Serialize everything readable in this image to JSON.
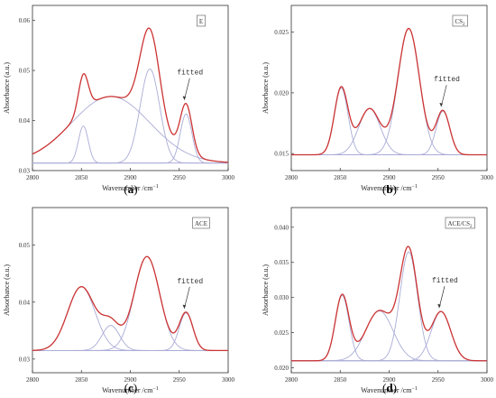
{
  "chart_data": [
    {
      "type": "line",
      "panel": "a",
      "caption": [
        "(",
        "a",
        ")"
      ],
      "legend": "E",
      "legend_sub": "",
      "annotation": "fitted",
      "xlabel": "Wavenumber",
      "xunit": "/cm",
      "xunit_sup": "−1",
      "ylabel": "Absorbance (a.u.)",
      "xlim": [
        2800,
        3000
      ],
      "ylim": [
        0.03,
        0.063
      ],
      "x_ticks": [
        2800,
        2850,
        2900,
        2950,
        3000
      ],
      "y_ticks": [
        "0.03",
        "0.04",
        "0.05",
        "0.06"
      ],
      "y_tick_values": [
        0.03,
        0.04,
        0.05,
        0.06
      ],
      "baseline": 0.0315,
      "peaks": [
        {
          "center": 2852,
          "height": 0.0074,
          "width": 5
        },
        {
          "center": 2880,
          "height": 0.0133,
          "width": 40
        },
        {
          "center": 2920,
          "height": 0.0188,
          "width": 10
        },
        {
          "center": 2957,
          "height": 0.0098,
          "width": 6
        }
      ],
      "annotation_peak": 2957
    },
    {
      "type": "line",
      "panel": "b",
      "caption": [
        "(",
        "b",
        ")"
      ],
      "legend": "CS",
      "legend_sub": "2",
      "annotation": "fitted",
      "xlabel": "Wavenumber",
      "xunit": "/cm",
      "xunit_sup": "−1",
      "ylabel": "Absorbance (a.u.)",
      "xlim": [
        2800,
        3000
      ],
      "ylim": [
        0.0136,
        0.0272
      ],
      "x_ticks": [
        2800,
        2850,
        2900,
        2950,
        3000
      ],
      "y_ticks": [
        "0.015",
        "0.020",
        "0.025"
      ],
      "y_tick_values": [
        0.015,
        0.02,
        0.025
      ],
      "baseline": 0.0149,
      "peaks": [
        {
          "center": 2851,
          "height": 0.0055,
          "width": 7
        },
        {
          "center": 2880,
          "height": 0.0038,
          "width": 11
        },
        {
          "center": 2920,
          "height": 0.0104,
          "width": 11
        },
        {
          "center": 2955,
          "height": 0.0036,
          "width": 7
        }
      ],
      "annotation_peak": 2955
    },
    {
      "type": "line",
      "panel": "c",
      "caption": [
        "(",
        "c",
        ")"
      ],
      "legend": "ACE",
      "legend_sub": "",
      "annotation": "fitted",
      "xlabel": "Wavenumber",
      "xunit": "/cm",
      "xunit_sup": "−1",
      "ylabel": "Absorbance (a.u.)",
      "xlim": [
        2800,
        3000
      ],
      "ylim": [
        0.0276,
        0.0566
      ],
      "x_ticks": [
        2800,
        2850,
        2900,
        2950,
        3000
      ],
      "y_ticks": [
        "0.03",
        "0.04",
        "0.05"
      ],
      "y_tick_values": [
        0.03,
        0.04,
        0.05
      ],
      "baseline": 0.0315,
      "peaks": [
        {
          "center": 2850,
          "height": 0.0112,
          "width": 14
        },
        {
          "center": 2880,
          "height": 0.0044,
          "width": 9
        },
        {
          "center": 2917,
          "height": 0.0165,
          "width": 13
        },
        {
          "center": 2957,
          "height": 0.0066,
          "width": 7
        }
      ],
      "annotation_peak": 2957
    },
    {
      "type": "line",
      "panel": "d",
      "caption": [
        "(",
        "d",
        ")"
      ],
      "legend": "ACE/CS",
      "legend_sub": "2",
      "annotation": "fitted",
      "xlabel": "Wavenumber",
      "xunit": "/cm",
      "xunit_sup": "−1",
      "ylabel": "Absorbance (a.u.)",
      "xlim": [
        2800,
        3000
      ],
      "ylim": [
        0.0193,
        0.0428
      ],
      "x_ticks": [
        2800,
        2850,
        2900,
        2950,
        3000
      ],
      "y_ticks": [
        "0.020",
        "0.025",
        "0.030",
        "0.035",
        "0.040"
      ],
      "y_tick_values": [
        0.02,
        0.025,
        0.03,
        0.035,
        0.04
      ],
      "baseline": 0.021,
      "peaks": [
        {
          "center": 2852,
          "height": 0.0093,
          "width": 7
        },
        {
          "center": 2890,
          "height": 0.0071,
          "width": 14
        },
        {
          "center": 2920,
          "height": 0.0155,
          "width": 9
        },
        {
          "center": 2953,
          "height": 0.007,
          "width": 10
        }
      ],
      "annotation_peak": 2953
    }
  ],
  "colors": {
    "fitted_curve": "#cc3333",
    "component": "#a9acd6",
    "baseline": "#8c8fe0",
    "axis": "#333333"
  }
}
